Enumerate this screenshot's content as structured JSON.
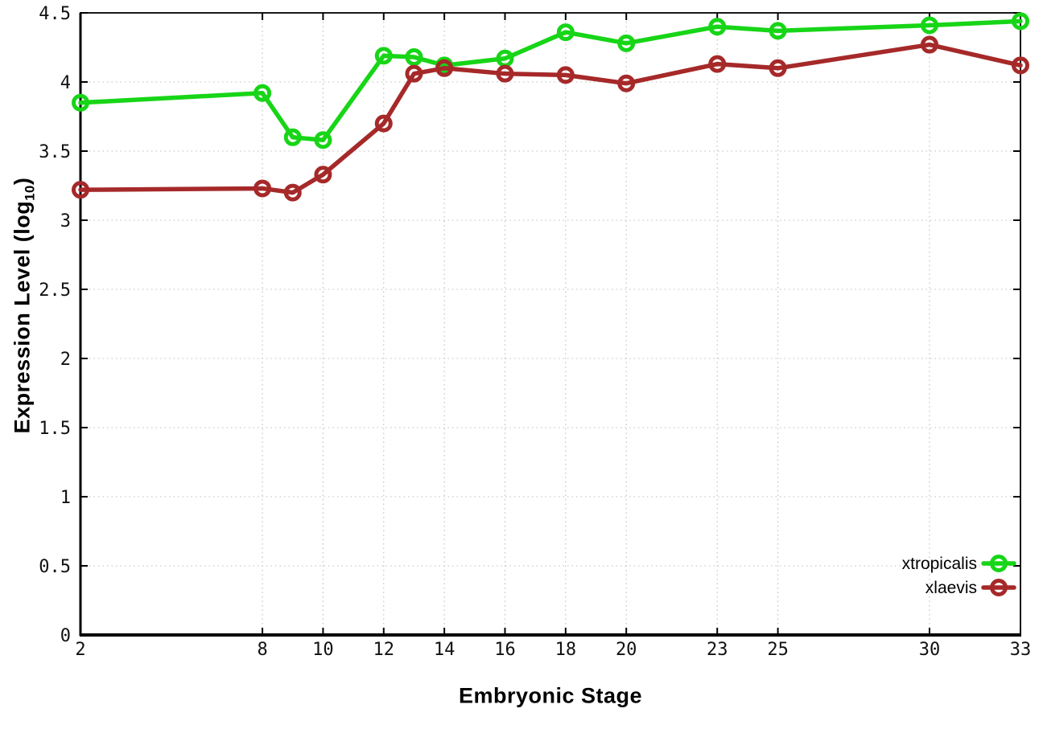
{
  "chart_data": {
    "type": "line",
    "title": "",
    "xlabel": "Embryonic Stage",
    "ylabel": "Expression Level (log10)",
    "ylabel_main": "Expression Level (log",
    "ylabel_sub": "10",
    "ylabel_close": ")",
    "x": [
      2,
      8,
      9,
      10,
      12,
      13,
      14,
      16,
      18,
      20,
      23,
      25,
      30,
      33
    ],
    "xticks": [
      2,
      8,
      10,
      12,
      14,
      16,
      18,
      20,
      23,
      25,
      30,
      33
    ],
    "yticks": [
      0,
      0.5,
      1,
      1.5,
      2,
      2.5,
      3,
      3.5,
      4,
      4.5
    ],
    "ytick_labels": [
      "0",
      "0.5",
      "1",
      "1.5",
      "2",
      "2.5",
      "3",
      "3.5",
      "4",
      "4.5"
    ],
    "xlim": [
      2,
      33
    ],
    "ylim": [
      0,
      4.5
    ],
    "grid": true,
    "legend_position": "bottom-right",
    "series": [
      {
        "name": "xtropicalis",
        "color": "#17d517",
        "values": [
          3.85,
          3.92,
          3.6,
          3.58,
          4.19,
          4.18,
          4.12,
          4.17,
          4.36,
          4.28,
          4.4,
          4.37,
          4.41,
          4.44
        ]
      },
      {
        "name": "xlaevis",
        "color": "#a62929",
        "values": [
          3.22,
          3.23,
          3.2,
          3.33,
          3.7,
          4.06,
          4.1,
          4.06,
          4.05,
          3.99,
          4.13,
          4.1,
          4.27,
          4.12
        ]
      }
    ],
    "axis_color": "#1a1a1a",
    "grid_color": "#bdbdbd",
    "background_color": "#ffffff"
  }
}
